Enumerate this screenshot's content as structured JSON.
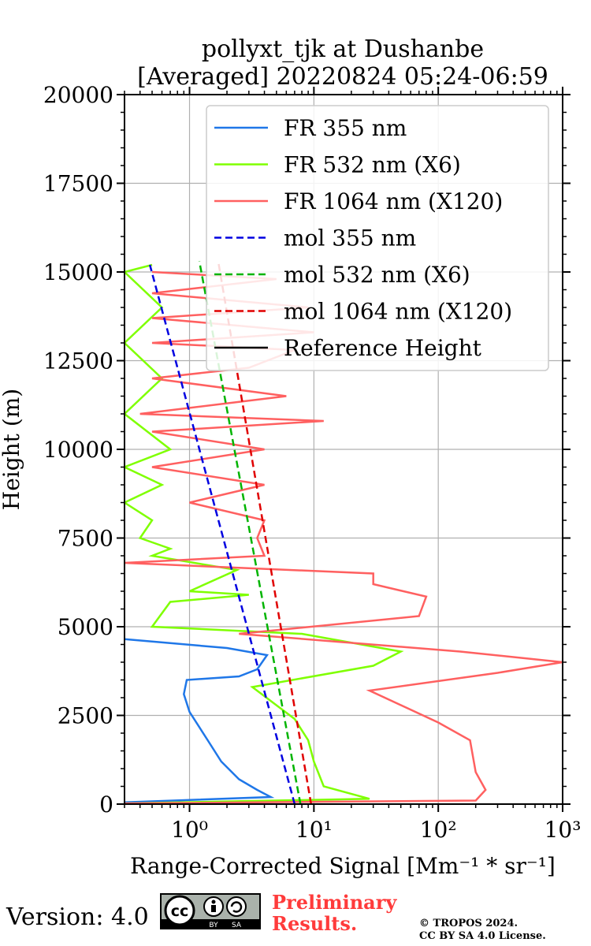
{
  "chart_data": {
    "type": "line",
    "title": "pollyxt_tjk at Dushanbe",
    "subtitle": "[Averaged] 20220824 05:24-06:59",
    "xlabel": "Range-Corrected Signal [Mm⁻¹ * sr⁻¹]",
    "ylabel": "Height (m)",
    "xscale": "log",
    "xlim": [
      0.3,
      1000
    ],
    "ylim": [
      0,
      20000
    ],
    "x_ticks": [
      1,
      10,
      100,
      1000
    ],
    "x_tick_labels": [
      "10⁰",
      "10¹",
      "10²",
      "10³"
    ],
    "y_ticks": [
      0,
      2500,
      5000,
      7500,
      10000,
      12500,
      15000,
      17500,
      20000
    ],
    "grid": true,
    "legend_position": "top-right",
    "series": [
      {
        "name": "FR 355 nm",
        "color": "#1f77e8",
        "style": "solid",
        "points": [
          [
            0.3,
            50
          ],
          [
            4.5,
            200
          ],
          [
            3.5,
            400
          ],
          [
            2.5,
            700
          ],
          [
            1.8,
            1200
          ],
          [
            1.4,
            1800
          ],
          [
            1.0,
            2600
          ],
          [
            0.9,
            3100
          ],
          [
            0.95,
            3500
          ],
          [
            2.5,
            3600
          ],
          [
            3.5,
            3800
          ],
          [
            4.2,
            4200
          ],
          [
            2.0,
            4400
          ],
          [
            0.3,
            4650
          ]
        ]
      },
      {
        "name": "FR 532 nm (X6)",
        "color": "#7fff00",
        "style": "solid",
        "points": [
          [
            0.3,
            20
          ],
          [
            28,
            150
          ],
          [
            12,
            500
          ],
          [
            10,
            1200
          ],
          [
            9,
            1800
          ],
          [
            7,
            2400
          ],
          [
            3.2,
            3300
          ],
          [
            30,
            3900
          ],
          [
            50,
            4300
          ],
          [
            8,
            4800
          ],
          [
            0.5,
            5000
          ],
          [
            0.7,
            5700
          ],
          [
            3,
            5900
          ],
          [
            1.0,
            6000
          ],
          [
            2.4,
            6600
          ],
          [
            0.5,
            7000
          ],
          [
            0.7,
            7200
          ],
          [
            0.4,
            7500
          ],
          [
            0.5,
            8000
          ],
          [
            0.3,
            8500
          ],
          [
            0.6,
            9000
          ],
          [
            0.3,
            9500
          ],
          [
            0.7,
            10000
          ],
          [
            0.3,
            11000
          ],
          [
            0.6,
            12000
          ],
          [
            0.3,
            13000
          ],
          [
            0.6,
            14000
          ],
          [
            0.3,
            15000
          ],
          [
            0.5,
            15200
          ]
        ]
      },
      {
        "name": "FR 1064 nm (X120)",
        "color": "#ff6060",
        "style": "solid",
        "points": [
          [
            0.3,
            20
          ],
          [
            200,
            100
          ],
          [
            240,
            400
          ],
          [
            200,
            900
          ],
          [
            180,
            1800
          ],
          [
            100,
            2300
          ],
          [
            28,
            3200
          ],
          [
            300,
            3700
          ],
          [
            1000,
            4000
          ],
          [
            150,
            4300
          ],
          [
            2.5,
            4800
          ],
          [
            70,
            5300
          ],
          [
            80,
            5850
          ],
          [
            30,
            6200
          ],
          [
            30,
            6500
          ],
          [
            0.3,
            6800
          ],
          [
            4,
            7000
          ],
          [
            3.5,
            7500
          ],
          [
            4,
            8000
          ],
          [
            1,
            8500
          ],
          [
            4,
            9000
          ],
          [
            0.5,
            9500
          ],
          [
            4,
            10000
          ],
          [
            0.5,
            10500
          ],
          [
            12,
            10800
          ],
          [
            0.4,
            11000
          ],
          [
            6,
            11500
          ],
          [
            0.5,
            12000
          ],
          [
            3,
            12300
          ],
          [
            7,
            12800
          ],
          [
            0.5,
            13000
          ],
          [
            10,
            13300
          ],
          [
            0.5,
            13700
          ],
          [
            9,
            14000
          ],
          [
            0.5,
            14400
          ],
          [
            5,
            14800
          ],
          [
            0.5,
            15000
          ]
        ]
      },
      {
        "name": "mol 355 nm",
        "color": "#0000e0",
        "style": "dashed",
        "points": [
          [
            7.0,
            0
          ],
          [
            0.48,
            15200
          ]
        ]
      },
      {
        "name": "mol 532 nm (X6)",
        "color": "#00b400",
        "style": "dashed",
        "points": [
          [
            7.8,
            0
          ],
          [
            1.2,
            15300
          ]
        ]
      },
      {
        "name": "mol 1064 nm (X120)",
        "color": "#e00000",
        "style": "dashed",
        "points": [
          [
            9.5,
            0
          ],
          [
            1.7,
            15300
          ]
        ]
      },
      {
        "name": "Reference Height",
        "color": "#000000",
        "style": "solid",
        "points": []
      }
    ]
  },
  "footer": {
    "version": "Version: 4.0",
    "preliminary_line1": "Preliminary",
    "preliminary_line2": "Results.",
    "copyright_line1": "© TROPOS 2024.",
    "copyright_line2": "CC BY SA 4.0 License.",
    "cc_logo_text": "cc",
    "cc_by": "BY",
    "cc_sa": "SA"
  }
}
